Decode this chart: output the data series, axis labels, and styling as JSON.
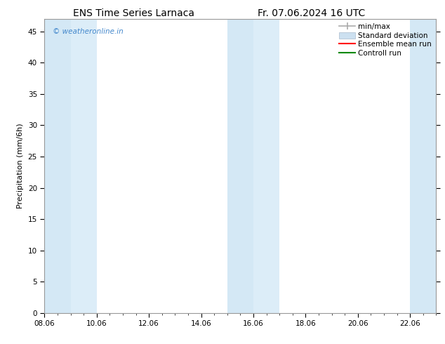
{
  "title_left": "ENS Time Series Larnaca",
  "title_right": "Fr. 07.06.2024 16 UTC",
  "ylabel": "Precipitation (mm/6h)",
  "xlim_left": 8.06,
  "xlim_right": 23.06,
  "ylim_bottom": 0,
  "ylim_top": 47,
  "xtick_labels": [
    "08.06",
    "10.06",
    "12.06",
    "14.06",
    "16.06",
    "18.06",
    "20.06",
    "22.06"
  ],
  "xtick_positions": [
    8.06,
    10.06,
    12.06,
    14.06,
    16.06,
    18.06,
    20.06,
    22.06
  ],
  "ytick_positions": [
    0,
    5,
    10,
    15,
    20,
    25,
    30,
    35,
    40,
    45
  ],
  "ytick_labels": [
    "0",
    "5",
    "10",
    "15",
    "20",
    "25",
    "30",
    "35",
    "40",
    "45"
  ],
  "shaded_regions": [
    {
      "x_start": 8.06,
      "x_end": 9.06,
      "color": "#d4e8f5"
    },
    {
      "x_start": 9.06,
      "x_end": 10.06,
      "color": "#dcedf8"
    },
    {
      "x_start": 15.06,
      "x_end": 16.06,
      "color": "#d4e8f5"
    },
    {
      "x_start": 16.06,
      "x_end": 17.06,
      "color": "#dcedf8"
    },
    {
      "x_start": 22.06,
      "x_end": 23.06,
      "color": "#d4e8f5"
    }
  ],
  "legend_entries": [
    {
      "label": "min/max",
      "color": "#aaaaaa",
      "type": "errorbar"
    },
    {
      "label": "Standard deviation",
      "color": "#ccdaeb",
      "type": "fill"
    },
    {
      "label": "Ensemble mean run",
      "color": "#ff0000",
      "type": "line"
    },
    {
      "label": "Controll run",
      "color": "#008800",
      "type": "line"
    }
  ],
  "watermark_text": "© weatheronline.in",
  "watermark_color": "#4488cc",
  "background_color": "#ffffff",
  "plot_background": "#ffffff",
  "title_fontsize": 10,
  "axis_fontsize": 8,
  "tick_fontsize": 7.5,
  "legend_fontsize": 7.5
}
